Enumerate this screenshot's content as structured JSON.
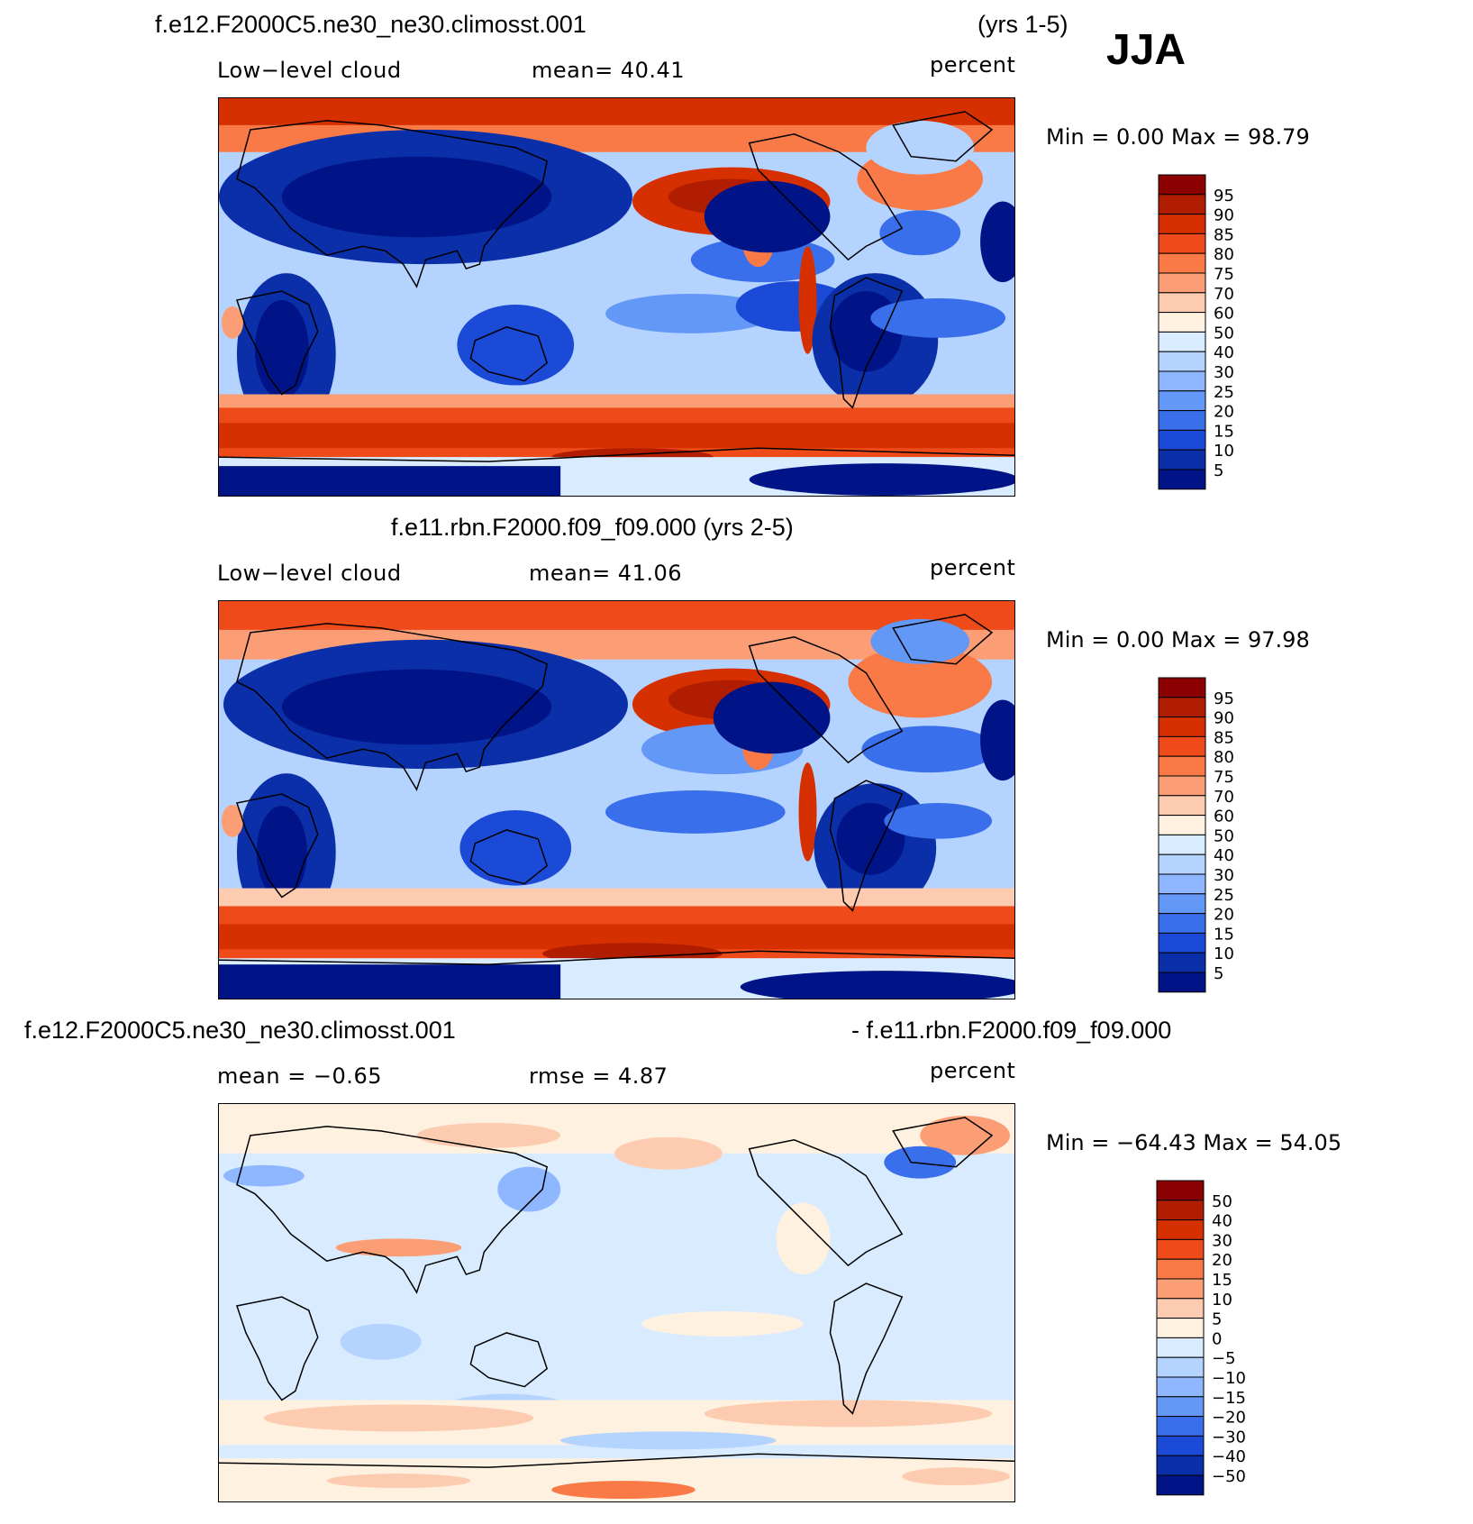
{
  "season": "JJA",
  "panels": [
    {
      "case_left": "f.e12.F2000C5.ne30_ne30.climosst.001",
      "case_right": "(yrs 1-5)",
      "left_label": "Low−level cloud",
      "center_label": "mean=   40.41",
      "units": "percent",
      "minmax": "Min =    0.00 Max =   98.79",
      "levels": [
        "95",
        "90",
        "85",
        "80",
        "75",
        "70",
        "60",
        "50",
        "40",
        "30",
        "25",
        "20",
        "15",
        "10",
        "5"
      ],
      "colors": [
        "#8b0000",
        "#b01d00",
        "#d63000",
        "#ef4b1a",
        "#f97a46",
        "#fb9e75",
        "#fdcbb0",
        "#fff1e0",
        "#d9ecff",
        "#b5d3ff",
        "#8eb7ff",
        "#6498f7",
        "#3a6fec",
        "#1a4ad6",
        "#0a2fa8",
        "#001487"
      ]
    },
    {
      "case_center": "f.e11.rbn.F2000.f09_f09.000 (yrs 2-5)",
      "left_label": "Low−level cloud",
      "center_label": "mean=   41.06",
      "units": "percent",
      "minmax": "Min =    0.00 Max =   97.98",
      "levels": [
        "95",
        "90",
        "85",
        "80",
        "75",
        "70",
        "60",
        "50",
        "40",
        "30",
        "25",
        "20",
        "15",
        "10",
        "5"
      ],
      "colors": [
        "#8b0000",
        "#b01d00",
        "#d63000",
        "#ef4b1a",
        "#f97a46",
        "#fb9e75",
        "#fdcbb0",
        "#fff1e0",
        "#d9ecff",
        "#b5d3ff",
        "#8eb7ff",
        "#6498f7",
        "#3a6fec",
        "#1a4ad6",
        "#0a2fa8",
        "#001487"
      ]
    },
    {
      "case_left": "f.e12.F2000C5.ne30_ne30.climosst.001",
      "case_right": "- f.e11.rbn.F2000.f09_f09.000",
      "left_label": "mean =   −0.65",
      "center_label": "rmse =    4.87",
      "units": "percent",
      "minmax": "Min = −64.43 Max =   54.05",
      "levels": [
        "50",
        "40",
        "30",
        "20",
        "15",
        "10",
        "5",
        "0",
        "−5",
        "−10",
        "−15",
        "−20",
        "−30",
        "−40",
        "−50"
      ],
      "colors": [
        "#8b0000",
        "#b01d00",
        "#d63000",
        "#ef4b1a",
        "#f97a46",
        "#fb9e75",
        "#fdcbb0",
        "#fff1e0",
        "#d9ecff",
        "#b5d3ff",
        "#8eb7ff",
        "#6498f7",
        "#3a6fec",
        "#1a4ad6",
        "#0a2fa8",
        "#001487"
      ]
    }
  ]
}
